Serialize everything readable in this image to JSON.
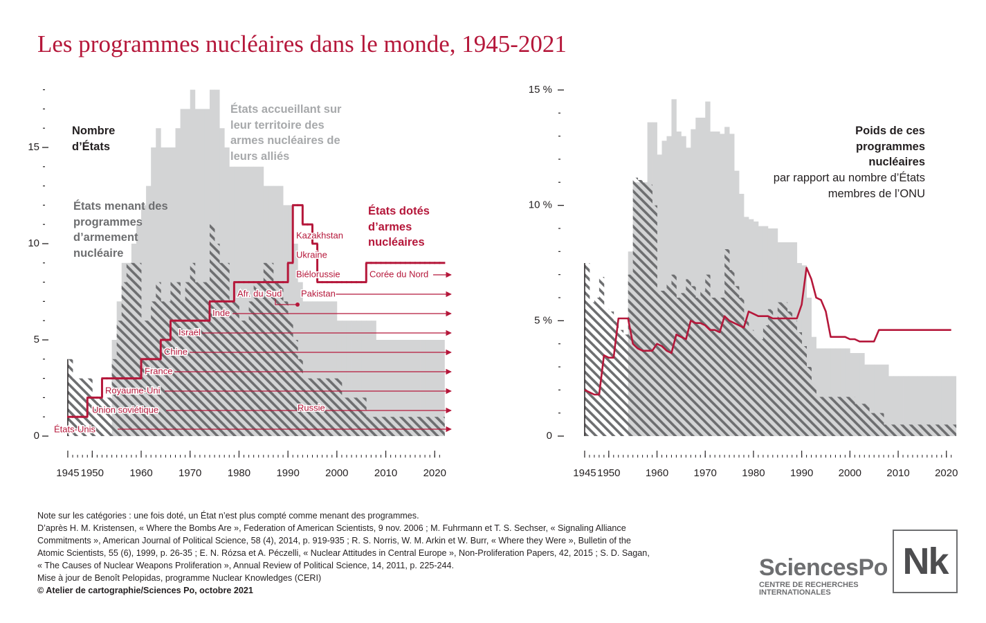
{
  "title": "Les programmes nucléaires dans le monde, 1945-2021",
  "chart_data": [
    {
      "type": "step-area",
      "step": true,
      "ylabel": "Nombre d’États",
      "x": [
        1945,
        1946,
        1947,
        1948,
        1949,
        1950,
        1951,
        1952,
        1953,
        1954,
        1955,
        1956,
        1957,
        1958,
        1959,
        1960,
        1961,
        1962,
        1963,
        1964,
        1965,
        1966,
        1967,
        1968,
        1969,
        1970,
        1971,
        1972,
        1973,
        1974,
        1975,
        1976,
        1977,
        1978,
        1979,
        1980,
        1981,
        1982,
        1983,
        1984,
        1985,
        1986,
        1987,
        1988,
        1989,
        1990,
        1991,
        1992,
        1993,
        1994,
        1995,
        1996,
        1997,
        1998,
        1999,
        2000,
        2001,
        2002,
        2003,
        2004,
        2005,
        2006,
        2007,
        2008,
        2009,
        2010,
        2011,
        2012,
        2013,
        2014,
        2015,
        2016,
        2017,
        2018,
        2019,
        2020,
        2021
      ],
      "xlim": [
        1944,
        2022
      ],
      "xticks": [
        1945,
        1950,
        1960,
        1970,
        1980,
        1990,
        2000,
        2010,
        2020
      ],
      "ylim": [
        0,
        18
      ],
      "yticks": [
        0,
        5,
        10,
        15
      ],
      "yminorticks": [
        1,
        2,
        3,
        4,
        6,
        7,
        8,
        9,
        11,
        12,
        13,
        14,
        16,
        17,
        18
      ],
      "series": [
        {
          "name": "États accueillant sur leur territoire des armes nucléaires de leurs alliés",
          "color": "#d3d4d5",
          "pattern": "solid",
          "values": [
            0,
            0,
            0,
            0,
            0,
            0,
            0,
            0,
            0,
            5,
            7,
            9,
            9,
            10,
            11,
            12,
            13,
            15,
            16,
            15,
            15,
            15,
            16,
            17,
            17,
            18,
            17,
            17,
            17,
            18,
            18,
            16,
            15,
            14,
            14,
            14,
            14,
            14,
            14,
            14,
            13,
            13,
            13,
            13,
            12,
            12,
            10,
            8,
            7,
            7,
            7,
            7,
            7,
            7,
            7,
            6,
            6,
            6,
            6,
            6,
            6,
            6,
            6,
            5,
            5,
            5,
            5,
            5,
            5,
            5,
            5,
            5,
            5,
            5,
            5,
            5,
            5
          ]
        },
        {
          "name": "États menant des programmes d’armement nucléaire",
          "color": "#6d6e70",
          "pattern": "hatch",
          "values": [
            4,
            3,
            3,
            3,
            3,
            2,
            2,
            2,
            2,
            4,
            6,
            8,
            9,
            9,
            9,
            6,
            6,
            7,
            8,
            7,
            7,
            8,
            8,
            7,
            8,
            9,
            8,
            8,
            8,
            11,
            10,
            9,
            9,
            7,
            7,
            6,
            6,
            7,
            8,
            8,
            9,
            9,
            8,
            8,
            7,
            6,
            5,
            4,
            3,
            3,
            3,
            3,
            3,
            3,
            3,
            3,
            2,
            2,
            2,
            2,
            2,
            1,
            1,
            1,
            1,
            1,
            1,
            1,
            1,
            1,
            1,
            1,
            1,
            1,
            1,
            1,
            1
          ]
        },
        {
          "name": "États dotés d’armes nucléaires",
          "color": "#b5173a",
          "pattern": "line",
          "values": [
            1,
            1,
            1,
            1,
            2,
            2,
            2,
            3,
            3,
            3,
            3,
            3,
            3,
            3,
            3,
            4,
            4,
            4,
            4,
            5,
            5,
            6,
            6,
            6,
            6,
            6,
            6,
            6,
            6,
            7,
            7,
            7,
            7,
            7,
            8,
            8,
            8,
            8,
            8,
            8,
            8,
            8,
            8,
            8,
            8,
            9,
            12,
            12,
            11,
            11,
            10,
            8,
            8,
            8,
            8,
            8,
            8,
            8,
            8,
            8,
            8,
            9,
            9,
            9,
            9,
            9,
            9,
            9,
            9,
            9,
            9,
            9,
            9,
            9,
            9,
            9,
            9
          ]
        }
      ],
      "annotations": [
        "États-Unis",
        "Union soviétique",
        "Royaume-Uni",
        "France",
        "Chine",
        "Israël",
        "Inde",
        "Afr. du Sud",
        "Pakistan",
        "Kazakhstan",
        "Ukraine",
        "Biélorussie",
        "Russie",
        "Corée du Nord"
      ]
    },
    {
      "type": "step-area",
      "step": false,
      "ylabel": "Poids de ces programmes nucléaires",
      "subtitle": "par rapport au nombre d’États membres de l’ONU",
      "x": [
        1945,
        1946,
        1947,
        1948,
        1949,
        1950,
        1951,
        1952,
        1953,
        1954,
        1955,
        1956,
        1957,
        1958,
        1959,
        1960,
        1961,
        1962,
        1963,
        1964,
        1965,
        1966,
        1967,
        1968,
        1969,
        1970,
        1971,
        1972,
        1973,
        1974,
        1975,
        1976,
        1977,
        1978,
        1979,
        1980,
        1981,
        1982,
        1983,
        1984,
        1985,
        1986,
        1987,
        1988,
        1989,
        1990,
        1991,
        1992,
        1993,
        1994,
        1995,
        1996,
        1997,
        1998,
        1999,
        2000,
        2001,
        2002,
        2003,
        2004,
        2005,
        2006,
        2007,
        2008,
        2009,
        2010,
        2011,
        2012,
        2013,
        2014,
        2015,
        2016,
        2017,
        2018,
        2019,
        2020,
        2021
      ],
      "xlim": [
        1944,
        2022
      ],
      "xticks": [
        1945,
        1950,
        1960,
        1970,
        1980,
        1990,
        2000,
        2010,
        2020
      ],
      "ylim": [
        0,
        15
      ],
      "yticks": [
        0,
        {
          "value": 5,
          "label": "5 %"
        },
        {
          "value": 10,
          "label": "10 %"
        },
        {
          "value": 15,
          "label": "15 %"
        }
      ],
      "yminorticks": [
        1,
        2,
        3,
        4,
        6,
        7,
        8,
        9,
        11,
        12,
        13,
        14
      ],
      "series": [
        {
          "color": "#d3d4d5",
          "pattern": "solid",
          "values": [
            0,
            0,
            0,
            0,
            0,
            0,
            0,
            0,
            0,
            8,
            11,
            11,
            11,
            13.6,
            13.6,
            12.2,
            12.8,
            13,
            14.6,
            13.2,
            13,
            12.5,
            13.3,
            13.8,
            13.8,
            14.5,
            13.2,
            13.2,
            13.1,
            13.4,
            13.1,
            11.5,
            10.5,
            9.5,
            9.4,
            9.3,
            9.1,
            9.1,
            9,
            9,
            8.4,
            8.4,
            8.4,
            8.4,
            7.5,
            7.4,
            6,
            4.3,
            3.8,
            3.8,
            3.8,
            3.8,
            3.8,
            3.8,
            3.8,
            3.6,
            3.6,
            3.6,
            3.1,
            3.1,
            3.1,
            3.1,
            3.1,
            2.6,
            2.6,
            2.6,
            2.6,
            2.6,
            2.6,
            2.6,
            2.6,
            2.6,
            2.6,
            2.6,
            2.6,
            2.6,
            2.6
          ]
        },
        {
          "color": "#6d6e70",
          "pattern": "hatch",
          "values": [
            7.5,
            5.8,
            6,
            6.9,
            5.5,
            5.4,
            5,
            4.6,
            4.4,
            7,
            11.2,
            11.1,
            11,
            10.9,
            10,
            6.3,
            6.3,
            6.6,
            7,
            6,
            6.2,
            6.8,
            6.5,
            6,
            6.3,
            7,
            6,
            6,
            6,
            8.1,
            7.2,
            6.5,
            6,
            5,
            4.6,
            4.3,
            4.2,
            4.8,
            5.5,
            5,
            5.8,
            5.8,
            5.4,
            5,
            4.5,
            3.9,
            3,
            2.2,
            1.7,
            1.7,
            1.7,
            1.7,
            1.7,
            1.7,
            1.7,
            1.7,
            1.4,
            1.4,
            1.4,
            1,
            1,
            1,
            0.5,
            0.5,
            0.5,
            0.5,
            0.5,
            0.5,
            0.5,
            0.5,
            0.5,
            0.5,
            0.5,
            0.5,
            0.5,
            0.5,
            0.5
          ]
        },
        {
          "color": "#b5173a",
          "pattern": "line",
          "values": [
            2,
            1.9,
            1.8,
            1.8,
            3.5,
            3.4,
            3.4,
            5.1,
            5.1,
            5.1,
            4,
            3.8,
            3.7,
            3.7,
            3.7,
            4,
            3.9,
            3.7,
            3.6,
            4.4,
            4.3,
            4.2,
            5,
            4.9,
            4.9,
            4.8,
            4.6,
            4.6,
            4.5,
            5.2,
            5,
            4.9,
            4.8,
            4.7,
            5.4,
            5.3,
            5.2,
            5.2,
            5.2,
            5.1,
            5.1,
            5.1,
            5.1,
            5.1,
            5.1,
            5.7,
            7.3,
            6.8,
            6,
            5.9,
            5.4,
            4.3,
            4.3,
            4.3,
            4.3,
            4.2,
            4.2,
            4.1,
            4.1,
            4.1,
            4.1,
            4.6,
            4.6,
            4.6,
            4.6,
            4.6,
            4.6,
            4.6,
            4.6,
            4.6,
            4.6,
            4.6,
            4.6,
            4.6,
            4.6,
            4.6,
            4.6
          ]
        }
      ]
    }
  ],
  "footer": {
    "notes": [
      "Note sur les catégories : une fois doté, un État n’est plus compté comme menant des programmes.",
      "D’après H. M. Kristensen, « Where the Bombs Are », Federation of American Scientists, 9 nov. 2006 ; M. Fuhrmann et T. S. Sechser, « Signaling Alliance",
      "Commitments », American Journal of Political Science, 58 (4), 2014, p. 919-935 ; R. S. Norris, W. M. Arkin et W. Burr, « Where they Were », Bulletin of the",
      "Atomic Scientists, 55 (6), 1999, p. 26-35 ; E. N. Rózsa et A. Péczelli, « Nuclear Attitudes in Central Europe », Non-Proliferation Papers, 42, 2015 ; S. D. Sagan,",
      "« The Causes of Nuclear Weapons Proliferation », Annual Review of Political Science, 14, 2011, p. 225-244.",
      "Mise à jour de Benoît Pelopidas, programme Nuclear Knowledges (CERI)"
    ],
    "credit": "© Atelier de cartographie/Sciences Po, octobre 2021",
    "logo": {
      "name": "SciencesPo",
      "subtitle": "CENTRE DE RECHERCHES INTERNATIONALES",
      "badge": "Nk"
    }
  }
}
